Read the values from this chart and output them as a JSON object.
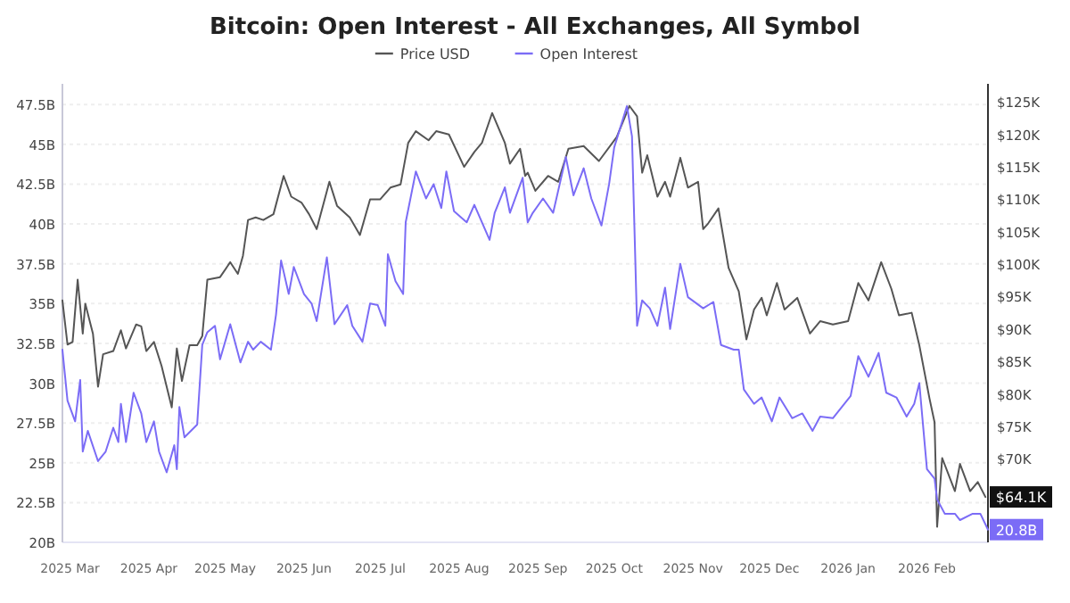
{
  "chart_data": {
    "type": "line",
    "title": "Bitcoin: Open Interest - All Exchanges, All Symbol",
    "legend": "top",
    "grid": "y",
    "xlim": [
      "2025-02-26",
      "2026-02-25"
    ],
    "xticks": [
      {
        "value": "2025-03-01",
        "label": "2025 Mar"
      },
      {
        "value": "2025-04-01",
        "label": "2025 Apr"
      },
      {
        "value": "2025-05-01",
        "label": "2025 May"
      },
      {
        "value": "2025-06-01",
        "label": "2025 Jun"
      },
      {
        "value": "2025-07-01",
        "label": "2025 Jul"
      },
      {
        "value": "2025-08-01",
        "label": "2025 Aug"
      },
      {
        "value": "2025-09-01",
        "label": "2025 Sep"
      },
      {
        "value": "2025-10-01",
        "label": "2025 Oct"
      },
      {
        "value": "2025-11-01",
        "label": "2025 Nov"
      },
      {
        "value": "2025-12-01",
        "label": "2025 Dec"
      },
      {
        "value": "2026-01-01",
        "label": "2026 Jan"
      },
      {
        "value": "2026-02-01",
        "label": "2026 Feb"
      }
    ],
    "ylim": [
      20,
      48.8
    ],
    "yticks": [
      {
        "value": 20,
        "label": "20B"
      },
      {
        "value": 22.5,
        "label": "22.5B"
      },
      {
        "value": 25,
        "label": "25B"
      },
      {
        "value": 27.5,
        "label": "27.5B"
      },
      {
        "value": 30,
        "label": "30B"
      },
      {
        "value": 32.5,
        "label": "32.5B"
      },
      {
        "value": 35,
        "label": "35B"
      },
      {
        "value": 37.5,
        "label": "37.5B"
      },
      {
        "value": 40,
        "label": "40B"
      },
      {
        "value": 42.5,
        "label": "42.5B"
      },
      {
        "value": 45,
        "label": "45B"
      },
      {
        "value": 47.5,
        "label": "47.5B"
      }
    ],
    "y2lim": [
      57.1,
      127.8
    ],
    "y2ticks": [
      {
        "value": 70,
        "label": "$70K"
      },
      {
        "value": 75,
        "label": "$75K"
      },
      {
        "value": 80,
        "label": "$80K"
      },
      {
        "value": 85,
        "label": "$85K"
      },
      {
        "value": 90,
        "label": "$90K"
      },
      {
        "value": 95,
        "label": "$95K"
      },
      {
        "value": 100,
        "label": "$100K"
      },
      {
        "value": 105,
        "label": "$105K"
      },
      {
        "value": 110,
        "label": "$110K"
      },
      {
        "value": 115,
        "label": "$115K"
      },
      {
        "value": 120,
        "label": "$120K"
      },
      {
        "value": 125,
        "label": "$125K"
      }
    ],
    "series": [
      {
        "name": "Price USD",
        "color": "#555555",
        "axis": "y2",
        "x": [
          "2025-02-26",
          "2025-02-28",
          "2025-03-02",
          "2025-03-04",
          "2025-03-06",
          "2025-03-07",
          "2025-03-10",
          "2025-03-12",
          "2025-03-14",
          "2025-03-18",
          "2025-03-21",
          "2025-03-23",
          "2025-03-27",
          "2025-03-29",
          "2025-03-31",
          "2025-04-03",
          "2025-04-06",
          "2025-04-10",
          "2025-04-12",
          "2025-04-14",
          "2025-04-17",
          "2025-04-20",
          "2025-04-22",
          "2025-04-24",
          "2025-04-29",
          "2025-05-03",
          "2025-05-06",
          "2025-05-08",
          "2025-05-10",
          "2025-05-13",
          "2025-05-16",
          "2025-05-20",
          "2025-05-24",
          "2025-05-27",
          "2025-05-31",
          "2025-06-03",
          "2025-06-06",
          "2025-06-11",
          "2025-06-14",
          "2025-06-19",
          "2025-06-23",
          "2025-06-27",
          "2025-07-01",
          "2025-07-05",
          "2025-07-09",
          "2025-07-12",
          "2025-07-15",
          "2025-07-20",
          "2025-07-23",
          "2025-07-28",
          "2025-08-03",
          "2025-08-07",
          "2025-08-10",
          "2025-08-14",
          "2025-08-19",
          "2025-08-21",
          "2025-08-25",
          "2025-08-27",
          "2025-08-28",
          "2025-08-31",
          "2025-09-05",
          "2025-09-09",
          "2025-09-13",
          "2025-09-19",
          "2025-09-25",
          "2025-10-02",
          "2025-10-07",
          "2025-10-10",
          "2025-10-12",
          "2025-10-14",
          "2025-10-18",
          "2025-10-21",
          "2025-10-23",
          "2025-10-27",
          "2025-10-30",
          "2025-11-03",
          "2025-11-05",
          "2025-11-07",
          "2025-11-11",
          "2025-11-15",
          "2025-11-19",
          "2025-11-22",
          "2025-11-25",
          "2025-11-28",
          "2025-11-30",
          "2025-12-04",
          "2025-12-07",
          "2025-12-12",
          "2025-12-17",
          "2025-12-21",
          "2025-12-26",
          "2026-01-01",
          "2026-01-05",
          "2026-01-09",
          "2026-01-14",
          "2026-01-18",
          "2026-01-21",
          "2026-01-26",
          "2026-01-29",
          "2026-02-02",
          "2026-02-04",
          "2026-02-05",
          "2026-02-07",
          "2026-02-12",
          "2026-02-14",
          "2026-02-18",
          "2026-02-21",
          "2026-02-24"
        ],
        "values": [
          94.4,
          87.6,
          88,
          97.6,
          89.3,
          93.9,
          89.3,
          81.1,
          86.1,
          86.6,
          89.8,
          87,
          90.7,
          90.4,
          86.6,
          88,
          84.3,
          77.9,
          87,
          82,
          87.5,
          87.5,
          88.9,
          97.6,
          98,
          100.3,
          98.5,
          101.3,
          106.8,
          107.2,
          106.8,
          107.7,
          113.6,
          110.4,
          109.5,
          107.7,
          105.4,
          112.7,
          109,
          107.2,
          104.5,
          110,
          110,
          111.8,
          112.3,
          118.7,
          120.5,
          119.1,
          120.5,
          120,
          115,
          117.3,
          118.7,
          123.3,
          118.7,
          115.5,
          117.8,
          113.6,
          114.1,
          111.3,
          113.6,
          112.7,
          117.8,
          118.2,
          115.9,
          119.6,
          124.4,
          122.8,
          114.1,
          116.8,
          110.4,
          112.7,
          110.4,
          116.4,
          111.8,
          112.7,
          105.4,
          106.3,
          108.6,
          99.4,
          95.8,
          88.4,
          93,
          94.8,
          92.1,
          97.1,
          93,
          94.8,
          89.3,
          91.2,
          90.7,
          91.2,
          97.1,
          94.4,
          100.3,
          96.2,
          92.1,
          92.5,
          87.5,
          79.3,
          75.6,
          59.5,
          70.1,
          65,
          69.2,
          65,
          66.4,
          64.1
        ],
        "value_labels": [
          null,
          null,
          null,
          null,
          null,
          null,
          null,
          null,
          null,
          null,
          null,
          null,
          null,
          null,
          null,
          null,
          null,
          null,
          null,
          null,
          null,
          null,
          null,
          null,
          null,
          null,
          null,
          null,
          null,
          null,
          null,
          null,
          null,
          null,
          null,
          null,
          null,
          null,
          null,
          null,
          null,
          null,
          null,
          null,
          null,
          null,
          null,
          null,
          null,
          null,
          null,
          null,
          null,
          null,
          null,
          null,
          null,
          null,
          null,
          null,
          null,
          null,
          null,
          null,
          null,
          null,
          null,
          null,
          null,
          null,
          null,
          null,
          null,
          null,
          null,
          null,
          null,
          null,
          null,
          null,
          null,
          null,
          null,
          null,
          null,
          null,
          null,
          null,
          null,
          null,
          null,
          null,
          null,
          null,
          null,
          null,
          null,
          null,
          null,
          null,
          null,
          null,
          null,
          null,
          null,
          null,
          null,
          "$64.1K"
        ]
      },
      {
        "name": "Open Interest",
        "color": "#7b6cf6",
        "x": [
          "2025-02-26",
          "2025-02-28",
          "2025-03-03",
          "2025-03-05",
          "2025-03-06",
          "2025-03-08",
          "2025-03-12",
          "2025-03-15",
          "2025-03-18",
          "2025-03-20",
          "2025-03-21",
          "2025-03-23",
          "2025-03-26",
          "2025-03-29",
          "2025-03-31",
          "2025-04-03",
          "2025-04-05",
          "2025-04-08",
          "2025-04-11",
          "2025-04-12",
          "2025-04-13",
          "2025-04-15",
          "2025-04-20",
          "2025-04-22",
          "2025-04-24",
          "2025-04-27",
          "2025-04-29",
          "2025-05-03",
          "2025-05-07",
          "2025-05-10",
          "2025-05-12",
          "2025-05-15",
          "2025-05-19",
          "2025-05-21",
          "2025-05-23",
          "2025-05-26",
          "2025-05-28",
          "2025-06-01",
          "2025-06-04",
          "2025-06-06",
          "2025-06-10",
          "2025-06-13",
          "2025-06-18",
          "2025-06-20",
          "2025-06-24",
          "2025-06-27",
          "2025-06-30",
          "2025-07-03",
          "2025-07-04",
          "2025-07-07",
          "2025-07-10",
          "2025-07-11",
          "2025-07-15",
          "2025-07-19",
          "2025-07-22",
          "2025-07-25",
          "2025-07-27",
          "2025-07-30",
          "2025-08-04",
          "2025-08-07",
          "2025-08-13",
          "2025-08-15",
          "2025-08-19",
          "2025-08-21",
          "2025-08-26",
          "2025-08-28",
          "2025-08-30",
          "2025-09-03",
          "2025-09-07",
          "2025-09-12",
          "2025-09-15",
          "2025-09-19",
          "2025-09-22",
          "2025-09-26",
          "2025-09-29",
          "2025-10-01",
          "2025-10-06",
          "2025-10-08",
          "2025-10-10",
          "2025-10-12",
          "2025-10-15",
          "2025-10-18",
          "2025-10-21",
          "2025-10-23",
          "2025-10-27",
          "2025-10-30",
          "2025-11-05",
          "2025-11-09",
          "2025-11-12",
          "2025-11-17",
          "2025-11-19",
          "2025-11-21",
          "2025-11-25",
          "2025-11-28",
          "2025-12-02",
          "2025-12-05",
          "2025-12-10",
          "2025-12-14",
          "2025-12-18",
          "2025-12-21",
          "2025-12-26",
          "2026-01-02",
          "2026-01-05",
          "2026-01-09",
          "2026-01-13",
          "2026-01-16",
          "2026-01-20",
          "2026-01-24",
          "2026-01-27",
          "2026-01-29",
          "2026-02-01",
          "2026-02-04",
          "2026-02-05",
          "2026-02-08",
          "2026-02-12",
          "2026-02-14",
          "2026-02-19",
          "2026-02-22",
          "2026-02-25"
        ],
        "values": [
          32.1,
          28.9,
          27.6,
          30.2,
          25.7,
          27,
          25.1,
          25.7,
          27.2,
          26.3,
          28.7,
          26.3,
          29.4,
          28.1,
          26.3,
          27.6,
          25.7,
          24.4,
          26.1,
          24.6,
          28.5,
          26.6,
          27.4,
          32.4,
          33.2,
          33.6,
          31.5,
          33.7,
          31.3,
          32.6,
          32.1,
          32.6,
          32.1,
          34.3,
          37.7,
          35.6,
          37.3,
          35.6,
          35,
          33.9,
          37.9,
          33.7,
          34.9,
          33.6,
          32.6,
          35,
          34.9,
          33.6,
          38.1,
          36.4,
          35.6,
          40.1,
          43.3,
          41.6,
          42.5,
          41,
          43.3,
          40.8,
          40.1,
          41.2,
          39,
          40.7,
          42.3,
          40.7,
          42.9,
          40.1,
          40.7,
          41.6,
          40.7,
          44.2,
          41.8,
          43.5,
          41.6,
          39.9,
          42.5,
          44.8,
          47.4,
          45.5,
          33.6,
          35.2,
          34.7,
          33.6,
          36,
          33.4,
          37.5,
          35.4,
          34.7,
          35.1,
          32.4,
          32.1,
          32.1,
          29.6,
          28.7,
          29.1,
          27.6,
          29.1,
          27.8,
          28.1,
          27,
          27.9,
          27.8,
          29.2,
          31.7,
          30.4,
          31.9,
          29.4,
          29.1,
          27.9,
          28.7,
          30,
          24.6,
          24,
          22.7,
          21.8,
          21.8,
          21.4,
          21.8,
          21.8,
          20.8
        ],
        "value_labels": [
          null,
          null,
          null,
          null,
          null,
          null,
          null,
          null,
          null,
          null,
          null,
          null,
          null,
          null,
          null,
          null,
          null,
          null,
          null,
          null,
          null,
          null,
          null,
          null,
          null,
          null,
          null,
          null,
          null,
          null,
          null,
          null,
          null,
          null,
          null,
          null,
          null,
          null,
          null,
          null,
          null,
          null,
          null,
          null,
          null,
          null,
          null,
          null,
          null,
          null,
          null,
          null,
          null,
          null,
          null,
          null,
          null,
          null,
          null,
          null,
          null,
          null,
          null,
          null,
          null,
          null,
          null,
          null,
          null,
          null,
          null,
          null,
          null,
          null,
          null,
          null,
          null,
          null,
          null,
          null,
          null,
          null,
          null,
          null,
          null,
          null,
          null,
          null,
          null,
          null,
          null,
          null,
          null,
          null,
          null,
          null,
          null,
          null,
          null,
          null,
          null,
          null,
          null,
          null,
          null,
          null,
          null,
          null,
          null,
          null,
          null,
          null,
          null,
          null,
          null,
          null,
          null,
          null,
          "20.8B"
        ]
      }
    ]
  }
}
